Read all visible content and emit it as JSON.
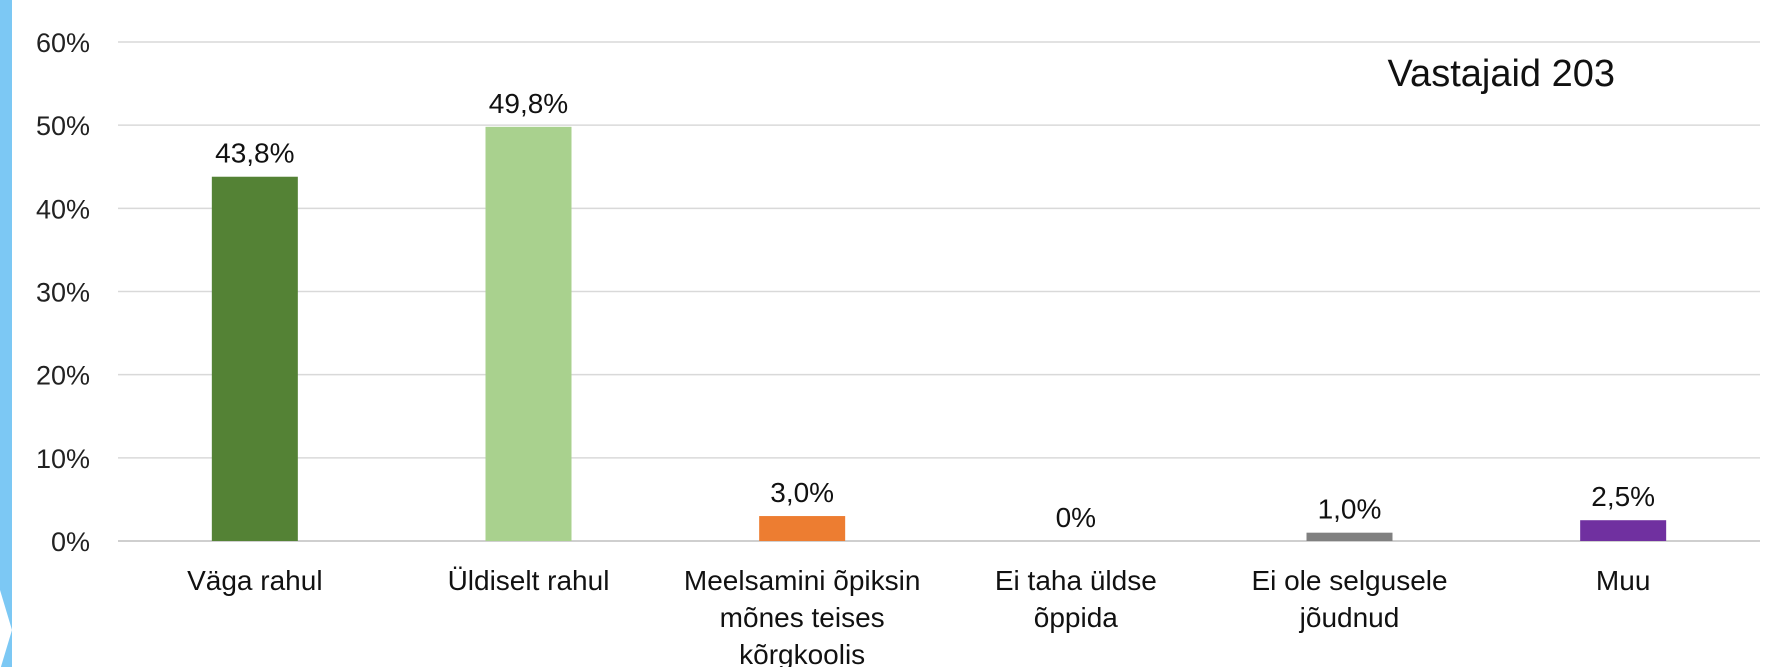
{
  "chart_data": {
    "type": "bar",
    "title": "",
    "annotation": "Vastajaid  203",
    "categories": [
      [
        "Väga rahul"
      ],
      [
        "Üldiselt rahul"
      ],
      [
        "Meelsamini õpiksin",
        "mõnes teises",
        "kõrgkoolis"
      ],
      [
        "Ei taha üldse",
        "õppida"
      ],
      [
        "Ei ole selgusele",
        "jõudnud"
      ],
      [
        "Muu"
      ]
    ],
    "values": [
      43.8,
      49.8,
      3.0,
      0,
      1.0,
      2.5
    ],
    "value_labels": [
      "43,8%",
      "49,8%",
      "3,0%",
      "0%",
      "1,0%",
      "2,5%"
    ],
    "colors": [
      "#548235",
      "#a9d18e",
      "#ed7d31",
      "#5b9bd5",
      "#808080",
      "#7030a0"
    ],
    "ylim": [
      0,
      60
    ],
    "yticks": [
      0,
      10,
      20,
      30,
      40,
      50,
      60
    ],
    "ytick_labels": [
      "0%",
      "10%",
      "20%",
      "30%",
      "40%",
      "50%",
      "60%"
    ],
    "grid": true,
    "gridline_color": "#d9d9d9",
    "accent_color": "#7cc8f4"
  }
}
